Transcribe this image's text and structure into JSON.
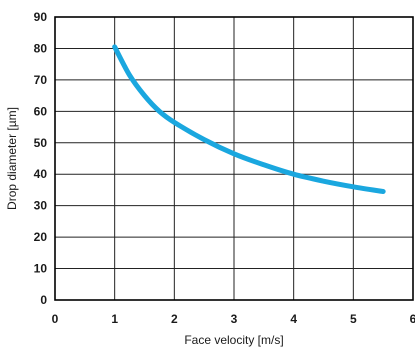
{
  "chart_data": {
    "type": "line",
    "xlabel": "Face velocity [m/s]",
    "ylabel": "Drop diameter [µm]",
    "xlim": [
      0,
      6
    ],
    "ylim": [
      0,
      90
    ],
    "x_ticks": [
      0,
      1,
      2,
      3,
      4,
      5,
      6
    ],
    "y_ticks": [
      0,
      10,
      20,
      30,
      40,
      50,
      60,
      70,
      80,
      90
    ],
    "grid": true,
    "legend": "none",
    "series": [
      {
        "color": "#1aa7df",
        "points": [
          [
            1.0,
            80.5
          ],
          [
            1.25,
            71.5
          ],
          [
            1.5,
            65.0
          ],
          [
            1.75,
            60.0
          ],
          [
            2.0,
            56.5
          ],
          [
            2.5,
            51.0
          ],
          [
            3.0,
            46.5
          ],
          [
            3.5,
            43.0
          ],
          [
            4.0,
            40.0
          ],
          [
            4.5,
            37.8
          ],
          [
            5.0,
            36.0
          ],
          [
            5.5,
            34.5
          ]
        ]
      }
    ]
  }
}
